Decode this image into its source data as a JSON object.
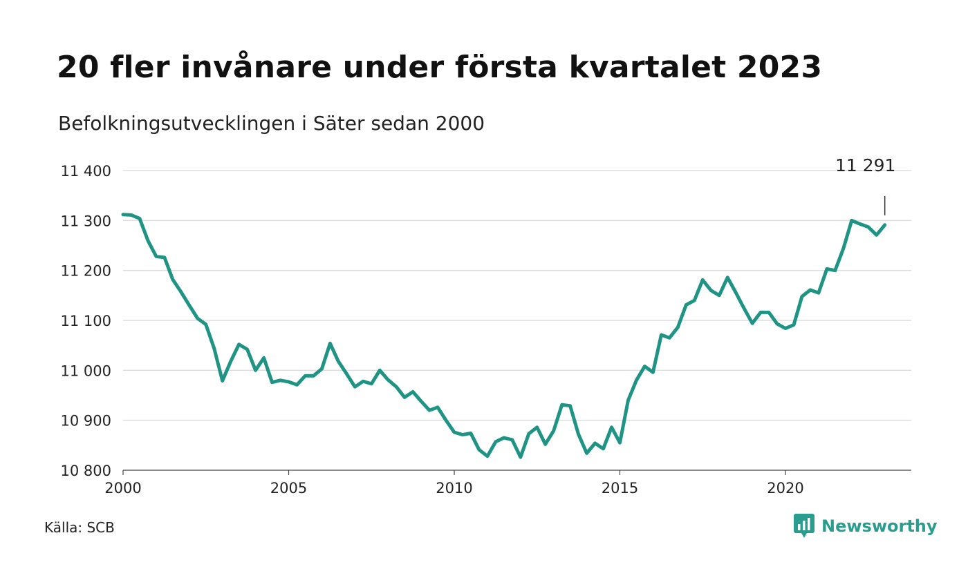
{
  "title": "20 fler invånare under första kvartalet 2023",
  "subtitle": "Befolkningsutvecklingen i Säter sedan 2000",
  "source": "Källa: SCB",
  "brand": {
    "name": "Newsworthy",
    "icon": "newsworthy-logo-icon",
    "color": "#2a9d8f"
  },
  "chart_data": {
    "type": "line",
    "title": "20 fler invånare under första kvartalet 2023",
    "subtitle": "Befolkningsutvecklingen i Säter sedan 2000",
    "xlabel": "",
    "ylabel": "",
    "x_ticks": [
      2000,
      2005,
      2010,
      2015,
      2020
    ],
    "x_tick_labels": [
      "2000",
      "2005",
      "2010",
      "2015",
      "2020"
    ],
    "y_ticks": [
      10800,
      10900,
      11000,
      11100,
      11200,
      11300,
      11400
    ],
    "y_tick_labels": [
      "10 800",
      "10 900",
      "11 000",
      "11 100",
      "11 200",
      "11 300",
      "11 400"
    ],
    "xlim": [
      2000,
      2023.8
    ],
    "ylim": [
      10800,
      11400
    ],
    "grid": true,
    "line_color": "#1f9484",
    "end_label": "11 291",
    "series": [
      {
        "x": [
          2000.0,
          2000.25,
          2000.5,
          2000.75,
          2001.0,
          2001.25,
          2001.5,
          2001.75,
          2002.0,
          2002.25,
          2002.5,
          2002.75,
          2003.0,
          2003.25,
          2003.5,
          2003.75,
          2004.0,
          2004.25,
          2004.5,
          2004.75,
          2005.0,
          2005.25,
          2005.5,
          2005.75,
          2006.0,
          2006.25,
          2006.5,
          2006.75,
          2007.0,
          2007.25,
          2007.5,
          2007.75,
          2008.0,
          2008.25,
          2008.5,
          2008.75,
          2009.0,
          2009.25,
          2009.5,
          2009.75,
          2010.0,
          2010.25,
          2010.5,
          2010.75,
          2011.0,
          2011.25,
          2011.5,
          2011.75,
          2012.0,
          2012.25,
          2012.5,
          2012.75,
          2013.0,
          2013.25,
          2013.5,
          2013.75,
          2014.0,
          2014.25,
          2014.5,
          2014.75,
          2015.0,
          2015.25,
          2015.5,
          2015.75,
          2016.0,
          2016.25,
          2016.5,
          2016.75,
          2017.0,
          2017.25,
          2017.5,
          2017.75,
          2018.0,
          2018.25,
          2018.5,
          2018.75,
          2019.0,
          2019.25,
          2019.5,
          2019.75,
          2020.0,
          2020.25,
          2020.5,
          2020.75,
          2021.0,
          2021.25,
          2021.5,
          2021.75,
          2022.0,
          2022.25,
          2022.5,
          2022.75,
          2023.0
        ],
        "values": [
          11312,
          11311,
          11304,
          11260,
          11228,
          11226,
          11182,
          11157,
          11130,
          11104,
          11092,
          11044,
          10979,
          11018,
          11052,
          11042,
          11000,
          11025,
          10976,
          10980,
          10977,
          10971,
          10989,
          10989,
          11003,
          11054,
          11018,
          10993,
          10967,
          10978,
          10973,
          11000,
          10981,
          10967,
          10946,
          10957,
          10938,
          10920,
          10926,
          10900,
          10876,
          10871,
          10874,
          10841,
          10828,
          10857,
          10865,
          10861,
          10826,
          10873,
          10886,
          10852,
          10879,
          10931,
          10929,
          10872,
          10834,
          10854,
          10843,
          10886,
          10855,
          10940,
          10980,
          11008,
          10996,
          11071,
          11065,
          11086,
          11131,
          11140,
          11181,
          11160,
          11150,
          11186,
          11156,
          11124,
          11094,
          11116,
          11116,
          11093,
          11084,
          11091,
          11148,
          11161,
          11155,
          11203,
          11200,
          11244,
          11300,
          11293,
          11287,
          11271,
          11291
        ]
      }
    ]
  }
}
